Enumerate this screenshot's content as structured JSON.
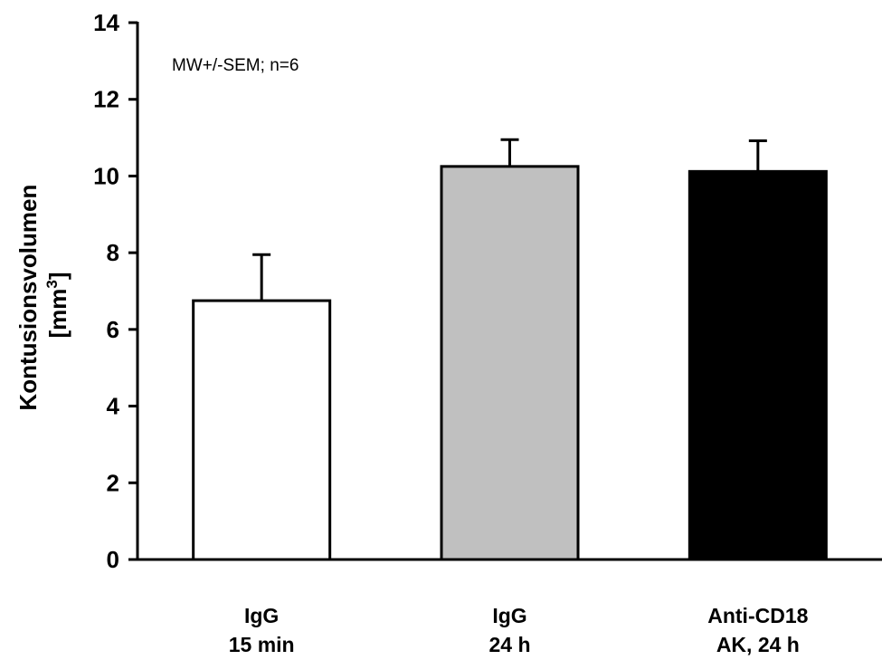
{
  "chart_data": {
    "type": "bar",
    "categories": [
      [
        "IgG",
        "15 min"
      ],
      [
        "IgG",
        "24 h"
      ],
      [
        "Anti-CD18",
        "AK, 24 h"
      ]
    ],
    "values": [
      6.75,
      10.25,
      10.12
    ],
    "errors": [
      1.2,
      0.7,
      0.8
    ],
    "bar_colors": [
      "#ffffff",
      "#c0c0c0",
      "#000000"
    ],
    "ylabel": "Kontusionsvolumen",
    "ylabel_unit_prefix": "[mm",
    "ylabel_unit_sup": "3",
    "ylabel_unit_suffix": "]",
    "annotation": "MW+/-SEM; n=6",
    "ylim": [
      0,
      14
    ],
    "yticks": [
      0,
      2,
      4,
      6,
      8,
      10,
      12,
      14
    ]
  }
}
